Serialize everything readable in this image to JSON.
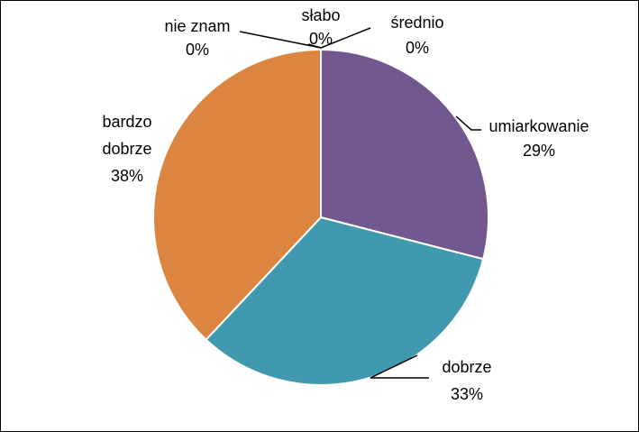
{
  "chart_data": {
    "type": "pie",
    "title": "",
    "series": [
      {
        "values": [
          {
            "label": "słabo",
            "value": 0,
            "display": "0%",
            "color": "#4f81bd"
          },
          {
            "label": "średnio",
            "value": 0,
            "display": "0%",
            "color": "#c0504d"
          },
          {
            "label": "umiarkowanie",
            "value": 29,
            "display": "29%",
            "color": "#72588f"
          },
          {
            "label": "dobrze",
            "value": 33,
            "display": "33%",
            "color": "#4199b0"
          },
          {
            "label": "bardzo dobrze",
            "value": 38,
            "display": "38%",
            "color": "#db8540"
          },
          {
            "label": "nie znam",
            "value": 0,
            "display": "0%",
            "color": "#7f7f7f"
          }
        ]
      }
    ],
    "legend": "none",
    "data_labels": "outside with leader lines"
  }
}
